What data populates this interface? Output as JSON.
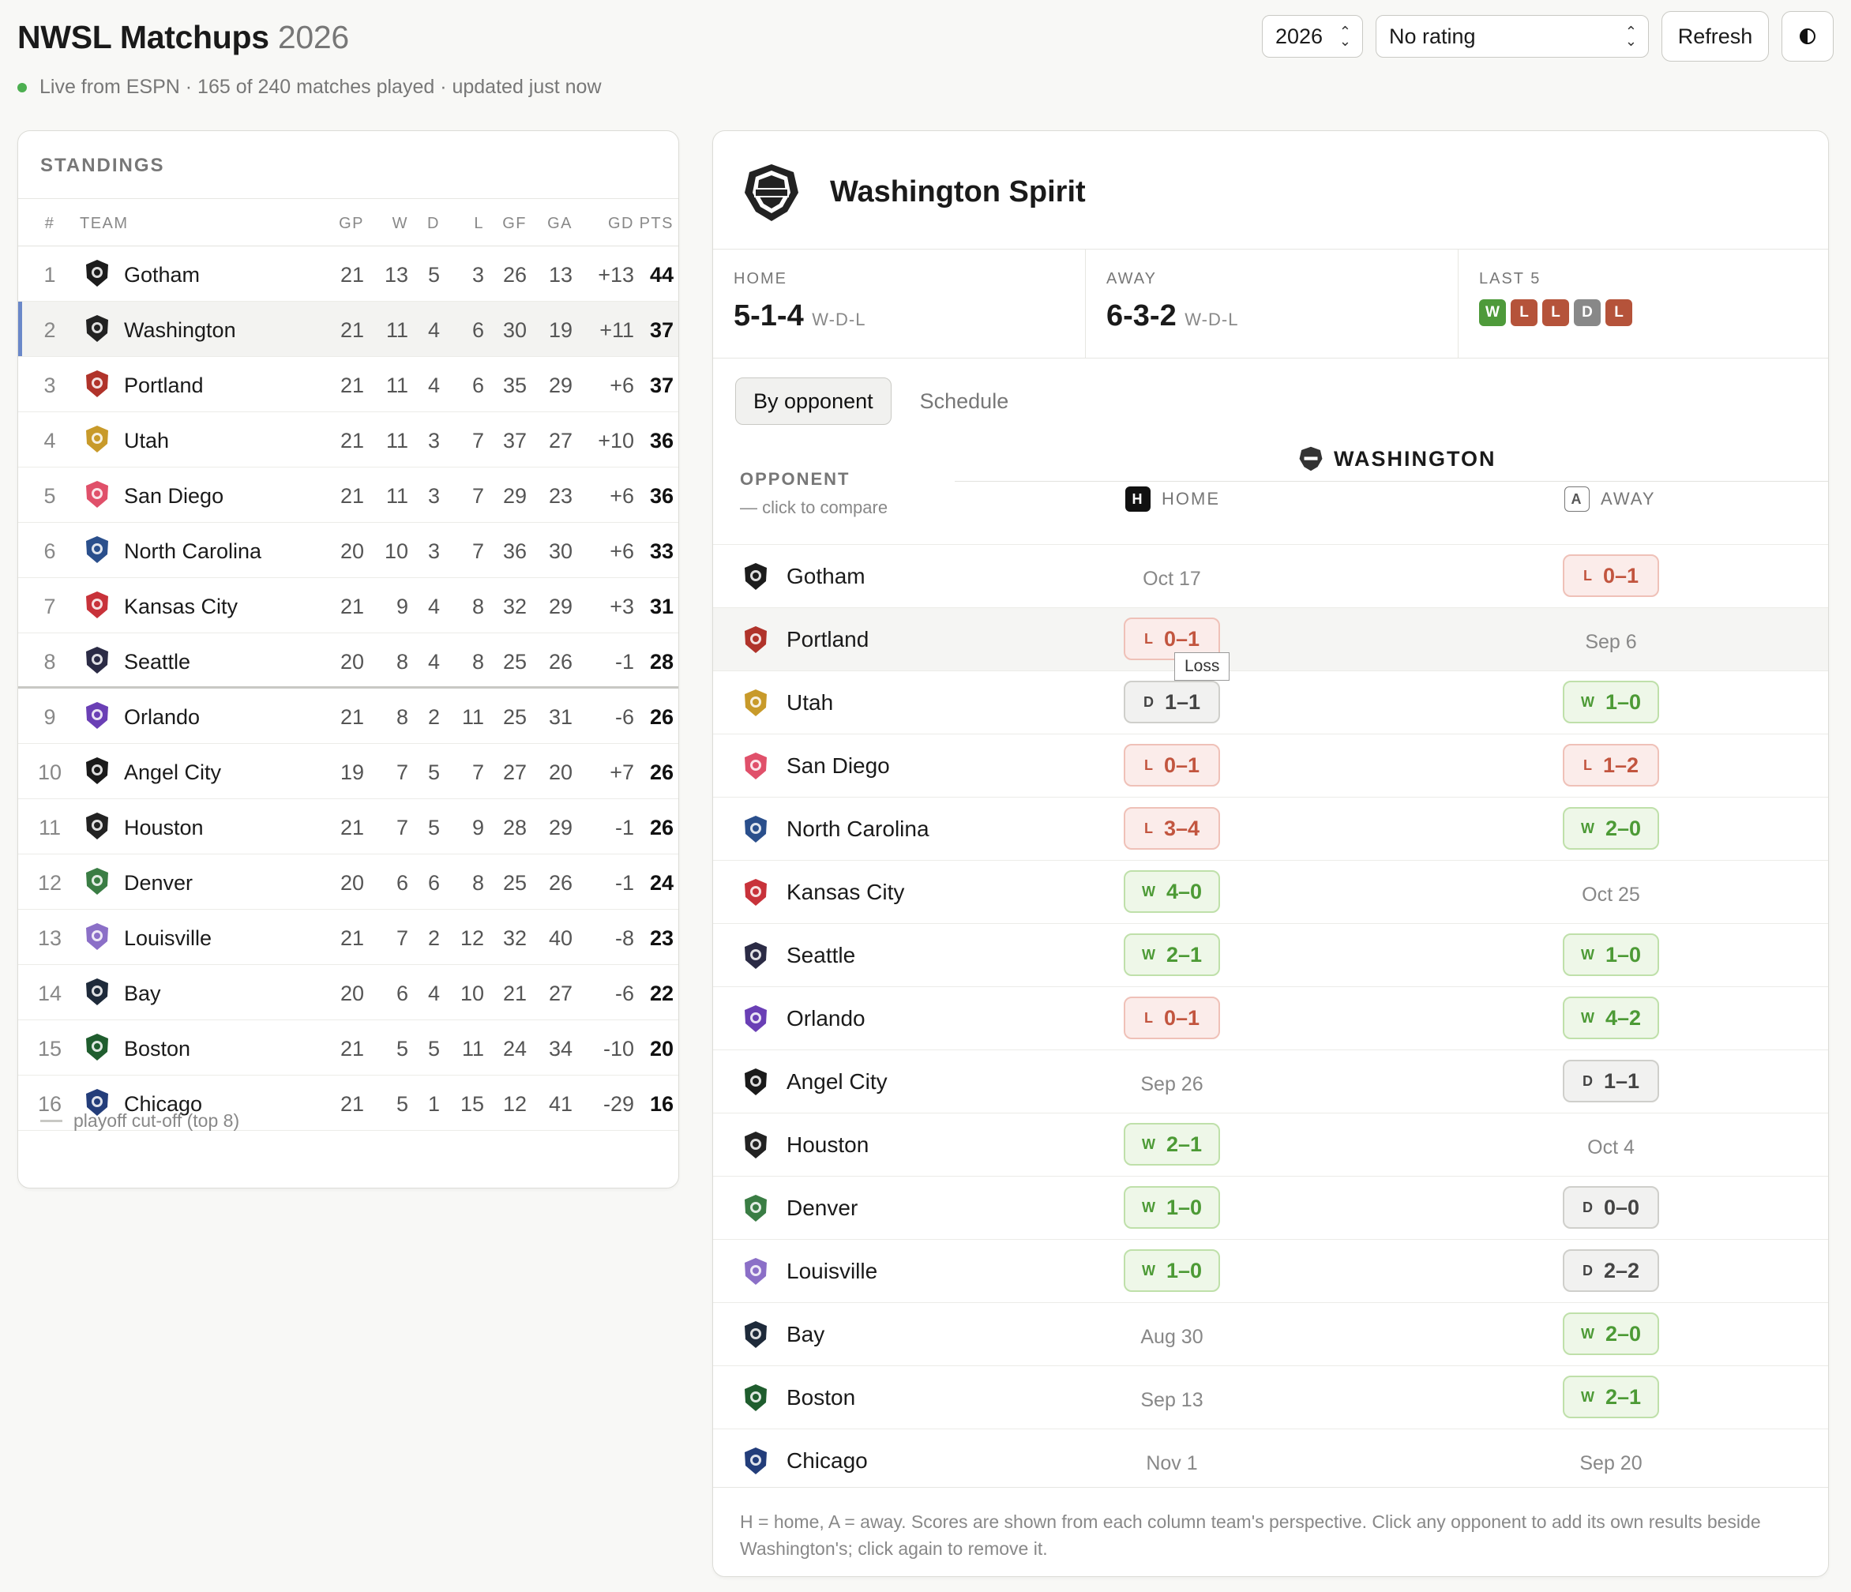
{
  "app": {
    "title": "NWSL Matchups",
    "year": "2026",
    "status": "Live from ESPN · 165 of 240 matches played · updated just now"
  },
  "controls": {
    "season_select": "2026",
    "rating_select": "No rating",
    "refresh_label": "Refresh",
    "theme_icon": "contrast-icon"
  },
  "standings": {
    "heading": "STANDINGS",
    "columns": [
      "#",
      "TEAM",
      "GP",
      "W",
      "D",
      "L",
      "GF",
      "GA",
      "GD",
      "PTS"
    ],
    "rows": [
      {
        "rank": "1",
        "team": "Gotham",
        "gp": "21",
        "w": "13",
        "d": "5",
        "l": "3",
        "gf": "26",
        "ga": "13",
        "gd": "+13",
        "pts": "44",
        "color": "#1c1c1c"
      },
      {
        "rank": "2",
        "team": "Washington",
        "gp": "21",
        "w": "11",
        "d": "4",
        "l": "6",
        "gf": "30",
        "ga": "19",
        "gd": "+11",
        "pts": "37",
        "color": "#222"
      },
      {
        "rank": "3",
        "team": "Portland",
        "gp": "21",
        "w": "11",
        "d": "4",
        "l": "6",
        "gf": "35",
        "ga": "29",
        "gd": "+6",
        "pts": "37",
        "color": "#b0332a"
      },
      {
        "rank": "4",
        "team": "Utah",
        "gp": "21",
        "w": "11",
        "d": "3",
        "l": "7",
        "gf": "37",
        "ga": "27",
        "gd": "+10",
        "pts": "36",
        "color": "#c89a2a"
      },
      {
        "rank": "5",
        "team": "San Diego",
        "gp": "21",
        "w": "11",
        "d": "3",
        "l": "7",
        "gf": "29",
        "ga": "23",
        "gd": "+6",
        "pts": "36",
        "color": "#e0506a"
      },
      {
        "rank": "6",
        "team": "North Carolina",
        "gp": "20",
        "w": "10",
        "d": "3",
        "l": "7",
        "gf": "36",
        "ga": "30",
        "gd": "+6",
        "pts": "33",
        "color": "#2a4f8c"
      },
      {
        "rank": "7",
        "team": "Kansas City",
        "gp": "21",
        "w": "9",
        "d": "4",
        "l": "8",
        "gf": "32",
        "ga": "29",
        "gd": "+3",
        "pts": "31",
        "color": "#c8323a"
      },
      {
        "rank": "8",
        "team": "Seattle",
        "gp": "20",
        "w": "8",
        "d": "4",
        "l": "8",
        "gf": "25",
        "ga": "26",
        "gd": "-1",
        "pts": "28",
        "color": "#2b2b45"
      },
      {
        "rank": "9",
        "team": "Orlando",
        "gp": "21",
        "w": "8",
        "d": "2",
        "l": "11",
        "gf": "25",
        "ga": "31",
        "gd": "-6",
        "pts": "26",
        "color": "#6a3fb5"
      },
      {
        "rank": "10",
        "team": "Angel City",
        "gp": "19",
        "w": "7",
        "d": "5",
        "l": "7",
        "gf": "27",
        "ga": "20",
        "gd": "+7",
        "pts": "26",
        "color": "#1a1a1a"
      },
      {
        "rank": "11",
        "team": "Houston",
        "gp": "21",
        "w": "7",
        "d": "5",
        "l": "9",
        "gf": "28",
        "ga": "29",
        "gd": "-1",
        "pts": "26",
        "color": "#222"
      },
      {
        "rank": "12",
        "team": "Denver",
        "gp": "20",
        "w": "6",
        "d": "6",
        "l": "8",
        "gf": "25",
        "ga": "26",
        "gd": "-1",
        "pts": "24",
        "color": "#3a7d44"
      },
      {
        "rank": "13",
        "team": "Louisville",
        "gp": "21",
        "w": "7",
        "d": "2",
        "l": "12",
        "gf": "32",
        "ga": "40",
        "gd": "-8",
        "pts": "23",
        "color": "#8b6fc7"
      },
      {
        "rank": "14",
        "team": "Bay",
        "gp": "20",
        "w": "6",
        "d": "4",
        "l": "10",
        "gf": "21",
        "ga": "27",
        "gd": "-6",
        "pts": "22",
        "color": "#1e2a3a"
      },
      {
        "rank": "15",
        "team": "Boston",
        "gp": "21",
        "w": "5",
        "d": "5",
        "l": "11",
        "gf": "24",
        "ga": "34",
        "gd": "-10",
        "pts": "20",
        "color": "#1f5d2e"
      },
      {
        "rank": "16",
        "team": "Chicago",
        "gp": "21",
        "w": "5",
        "d": "1",
        "l": "15",
        "gf": "12",
        "ga": "41",
        "gd": "-29",
        "pts": "16",
        "color": "#233d7a"
      }
    ],
    "footer": "playoff cut-off (top 8)"
  },
  "detail": {
    "team_name": "Washington Spirit",
    "home_label": "HOME",
    "home_record": "5-1-4",
    "away_label": "AWAY",
    "away_record": "6-3-2",
    "wdl_suffix": "W-D-L",
    "last5_label": "LAST 5",
    "last5": [
      "W",
      "L",
      "L",
      "D",
      "L"
    ],
    "tabs": {
      "by_opponent": "By opponent",
      "schedule": "Schedule"
    },
    "grid_header": "WASHINGTON",
    "opponent_label": "OPPONENT",
    "opponent_sub": "— click to compare",
    "home_col": "HOME",
    "away_col": "AWAY",
    "home_badge": "H",
    "away_badge": "A",
    "tooltip": "Loss",
    "matches": [
      {
        "team": "Gotham",
        "color": "#1c1c1c",
        "home": {
          "type": "date",
          "text": "Oct 17"
        },
        "away": {
          "type": "L",
          "text": "0–1"
        }
      },
      {
        "team": "Portland",
        "color": "#b0332a",
        "home": {
          "type": "L",
          "text": "0–1"
        },
        "away": {
          "type": "date",
          "text": "Sep 6"
        }
      },
      {
        "team": "Utah",
        "color": "#c89a2a",
        "home": {
          "type": "D",
          "text": "1–1"
        },
        "away": {
          "type": "W",
          "text": "1–0"
        }
      },
      {
        "team": "San Diego",
        "color": "#e0506a",
        "home": {
          "type": "L",
          "text": "0–1"
        },
        "away": {
          "type": "L",
          "text": "1–2"
        }
      },
      {
        "team": "North Carolina",
        "color": "#2a4f8c",
        "home": {
          "type": "L",
          "text": "3–4"
        },
        "away": {
          "type": "W",
          "text": "2–0"
        }
      },
      {
        "team": "Kansas City",
        "color": "#c8323a",
        "home": {
          "type": "W",
          "text": "4–0"
        },
        "away": {
          "type": "date",
          "text": "Oct 25"
        }
      },
      {
        "team": "Seattle",
        "color": "#2b2b45",
        "home": {
          "type": "W",
          "text": "2–1"
        },
        "away": {
          "type": "W",
          "text": "1–0"
        }
      },
      {
        "team": "Orlando",
        "color": "#6a3fb5",
        "home": {
          "type": "L",
          "text": "0–1"
        },
        "away": {
          "type": "W",
          "text": "4–2"
        }
      },
      {
        "team": "Angel City",
        "color": "#1a1a1a",
        "home": {
          "type": "date",
          "text": "Sep 26"
        },
        "away": {
          "type": "D",
          "text": "1–1"
        }
      },
      {
        "team": "Houston",
        "color": "#222",
        "home": {
          "type": "W",
          "text": "2–1"
        },
        "away": {
          "type": "date",
          "text": "Oct 4"
        }
      },
      {
        "team": "Denver",
        "color": "#3a7d44",
        "home": {
          "type": "W",
          "text": "1–0"
        },
        "away": {
          "type": "D",
          "text": "0–0"
        }
      },
      {
        "team": "Louisville",
        "color": "#8b6fc7",
        "home": {
          "type": "W",
          "text": "1–0"
        },
        "away": {
          "type": "D",
          "text": "2–2"
        }
      },
      {
        "team": "Bay",
        "color": "#1e2a3a",
        "home": {
          "type": "date",
          "text": "Aug 30"
        },
        "away": {
          "type": "W",
          "text": "2–0"
        }
      },
      {
        "team": "Boston",
        "color": "#1f5d2e",
        "home": {
          "type": "date",
          "text": "Sep 13"
        },
        "away": {
          "type": "W",
          "text": "2–1"
        }
      },
      {
        "team": "Chicago",
        "color": "#233d7a",
        "home": {
          "type": "date",
          "text": "Nov 1"
        },
        "away": {
          "type": "date",
          "text": "Sep 20"
        }
      }
    ],
    "footer": "H = home, A = away. Scores are shown from each column team's perspective. Click any opponent to add its own results beside Washington's; click again to remove it."
  }
}
